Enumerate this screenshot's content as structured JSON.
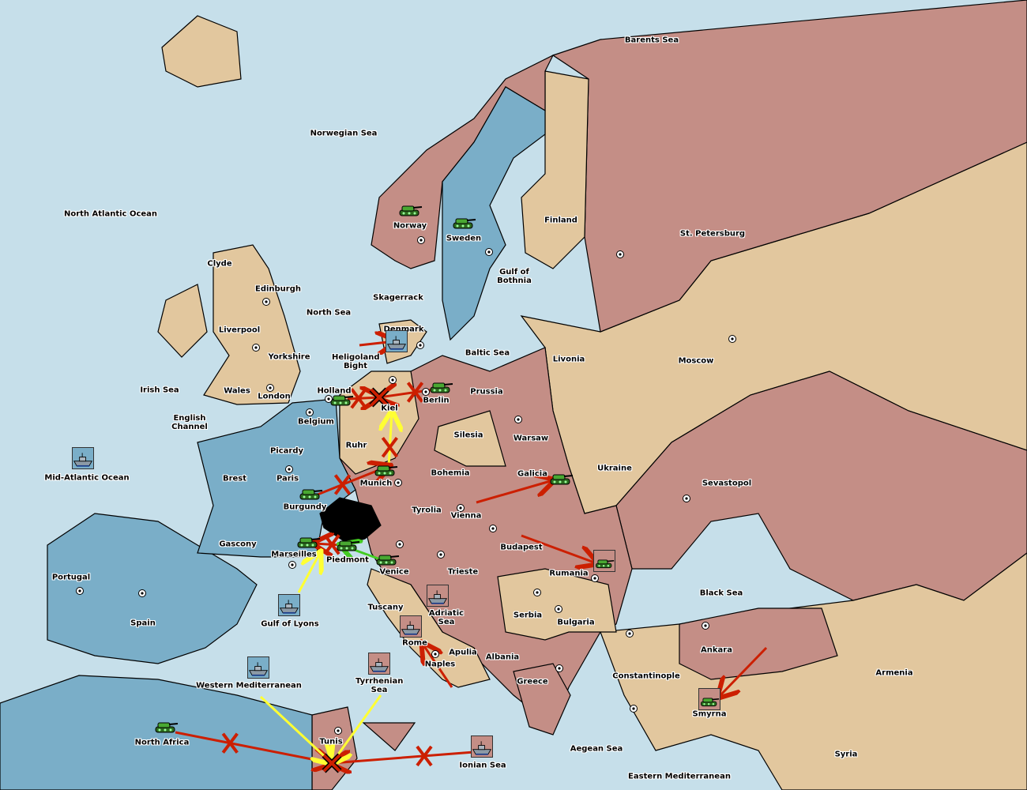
{
  "colors": {
    "sea": "#c6dfea",
    "neutral": "#e2c79e",
    "blue_power": "#7aaec8",
    "pink_power": "#c48e86",
    "impassable": "#000000",
    "army": "#3c9a2c",
    "move_order": "#cc1f00",
    "support_yellow": "#ffff33",
    "support_green": "#44cc22"
  },
  "provinces": [
    "North Atlantic Ocean",
    "Norwegian Sea",
    "Barents Sea",
    "Norway",
    "Sweden",
    "Finland",
    "St. Petersburg",
    "Clyde",
    "Edinburgh",
    "North Sea",
    "Skagerrack",
    "Gulf of Bothnia",
    "Liverpool",
    "Yorkshire",
    "Denmark",
    "Baltic Sea",
    "Livonia",
    "Moscow",
    "Heligoland Bight",
    "Irish Sea",
    "Wales",
    "London",
    "Holland",
    "Kiel",
    "Berlin",
    "Prussia",
    "English Channel",
    "Belgium",
    "Ruhr",
    "Silesia",
    "Warsaw",
    "Ukraine",
    "Picardy",
    "Brest",
    "Paris",
    "Munich",
    "Bohemia",
    "Galicia",
    "Sevastopol",
    "Mid-Atlantic Ocean",
    "Burgundy",
    "Tyrolia",
    "Vienna",
    "Gascony",
    "Marseilles",
    "Piedmont",
    "Venice",
    "Budapest",
    "Rumania",
    "Trieste",
    "Portugal",
    "Spain",
    "Gulf of Lyons",
    "Black Sea",
    "Tuscany",
    "Adriatic Sea",
    "Serbia",
    "Bulgaria",
    "Rome",
    "Apulia",
    "Albania",
    "Ankara",
    "Naples",
    "Armenia",
    "Constantinople",
    "Greece",
    "Western Mediterranean",
    "Tyrrhenian Sea",
    "Smyrna",
    "North Africa",
    "Tunis",
    "Aegean Sea",
    "Ionian Sea",
    "Syria",
    "Eastern Mediterranean"
  ],
  "units": [
    {
      "type": "army",
      "province": "Norway",
      "owner": "neutral"
    },
    {
      "type": "army",
      "province": "Sweden",
      "owner": "neutral"
    },
    {
      "type": "army",
      "province": "Holland",
      "owner": "neutral"
    },
    {
      "type": "army",
      "province": "Berlin",
      "owner": "neutral"
    },
    {
      "type": "army",
      "province": "Munich",
      "owner": "neutral"
    },
    {
      "type": "army",
      "province": "Burgundy",
      "owner": "neutral"
    },
    {
      "type": "army",
      "province": "Galicia",
      "owner": "neutral"
    },
    {
      "type": "army",
      "province": "Marseilles",
      "owner": "neutral"
    },
    {
      "type": "army",
      "province": "Piedmont",
      "owner": "neutral"
    },
    {
      "type": "army",
      "province": "Venice",
      "owner": "neutral"
    },
    {
      "type": "army",
      "province": "Rumania",
      "owner": "pink"
    },
    {
      "type": "army",
      "province": "Smyrna",
      "owner": "pink"
    },
    {
      "type": "army",
      "province": "North Africa",
      "owner": "neutral"
    },
    {
      "type": "fleet",
      "province": "Denmark",
      "owner": "blue"
    },
    {
      "type": "fleet",
      "province": "Mid-Atlantic Ocean",
      "owner": "blue"
    },
    {
      "type": "fleet",
      "province": "Gulf of Lyons",
      "owner": "blue"
    },
    {
      "type": "fleet",
      "province": "Western Mediterranean",
      "owner": "blue"
    },
    {
      "type": "fleet",
      "province": "Adriatic Sea",
      "owner": "pink"
    },
    {
      "type": "fleet",
      "province": "Rome",
      "owner": "pink"
    },
    {
      "type": "fleet",
      "province": "Tyrrhenian Sea",
      "owner": "pink"
    },
    {
      "type": "fleet",
      "province": "Ionian Sea",
      "owner": "pink"
    }
  ],
  "orders": [
    {
      "kind": "move",
      "from": "North Sea",
      "to": "Denmark",
      "failed": false
    },
    {
      "kind": "move",
      "from": "Holland",
      "to": "Kiel",
      "failed": true
    },
    {
      "kind": "move",
      "from": "Berlin",
      "to": "Kiel",
      "failed": true
    },
    {
      "kind": "support",
      "from": "Munich",
      "to": "Kiel",
      "failed": true
    },
    {
      "kind": "move",
      "from": "Burgundy",
      "to": "Munich",
      "failed": true
    },
    {
      "kind": "move",
      "from": "Vienna",
      "to": "Galicia",
      "failed": false
    },
    {
      "kind": "move",
      "from": "Budapest",
      "to": "Rumania",
      "failed": false
    },
    {
      "kind": "move",
      "from": "Piedmont",
      "to": "Marseilles",
      "failed": true
    },
    {
      "kind": "support_green",
      "from": "Venice",
      "to": "Piedmont",
      "failed": false
    },
    {
      "kind": "support",
      "from": "Gulf of Lyons",
      "to": "Marseilles",
      "failed": false
    },
    {
      "kind": "move",
      "from": "Naples",
      "to": "Rome",
      "failed": false
    },
    {
      "kind": "move",
      "from": "Ankara",
      "to": "Smyrna",
      "failed": false
    },
    {
      "kind": "move",
      "from": "North Africa",
      "to": "Tunis",
      "failed": true
    },
    {
      "kind": "move",
      "from": "Ionian Sea",
      "to": "Tunis",
      "failed": true
    },
    {
      "kind": "support",
      "from": "Western Mediterranean",
      "to": "Tunis",
      "failed": false
    },
    {
      "kind": "support",
      "from": "Tyrrhenian Sea",
      "to": "Tunis",
      "failed": false
    }
  ],
  "dislodged": [
    "Kiel",
    "Tunis"
  ]
}
